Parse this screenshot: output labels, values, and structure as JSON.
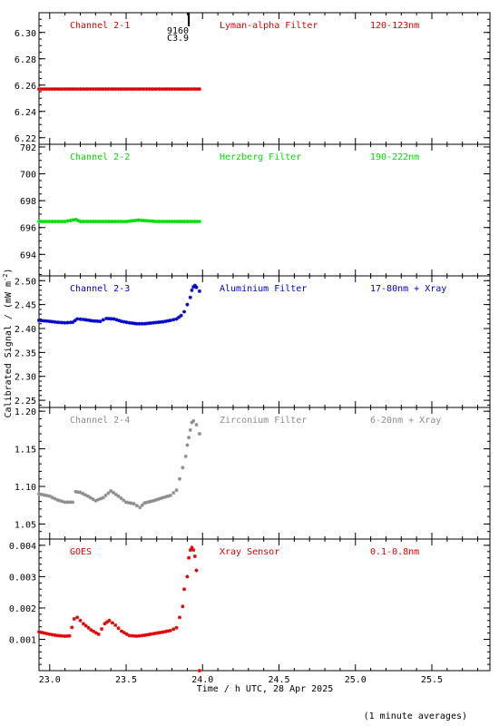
{
  "chart_data": {
    "type": "scatter",
    "y_axis_label": "Calibrated Signal / (mW m",
    "y_axis_label_exponent": "-2",
    "y_axis_label_close": ")",
    "x_axis_label": "Time / h UTC, 28 Apr 2025",
    "footnote": "(1 minute averages)",
    "xlim": [
      22.93,
      25.88
    ],
    "x_ticks": [
      23.0,
      23.5,
      24.0,
      24.5,
      25.0,
      25.5
    ],
    "x_tick_labels": [
      "23.0",
      "23.5",
      "24.0",
      "24.5",
      "25.0",
      "25.5"
    ],
    "flare_marker": {
      "x": 23.91,
      "label_line1": "9160",
      "label_line2": "C3.9"
    },
    "panels": [
      {
        "name": "Channel 2-1",
        "filter": "Lyman-alpha Filter",
        "band": "120-123nm",
        "color": "#e00000",
        "ylim": [
          6.215,
          6.315
        ],
        "y_ticks": [
          6.22,
          6.24,
          6.26,
          6.28,
          6.3
        ],
        "y_tick_labels": [
          "6.22",
          "6.24",
          "6.26",
          "6.28",
          "6.30"
        ],
        "minor_step": 0.005,
        "points": [
          [
            22.93,
            6.257
          ],
          [
            23.0,
            6.257
          ],
          [
            23.1,
            6.257
          ],
          [
            23.2,
            6.257
          ],
          [
            23.3,
            6.257
          ],
          [
            23.4,
            6.257
          ],
          [
            23.5,
            6.257
          ],
          [
            23.6,
            6.257
          ],
          [
            23.7,
            6.257
          ],
          [
            23.8,
            6.257
          ],
          [
            23.9,
            6.257
          ],
          [
            23.98,
            6.257
          ]
        ]
      },
      {
        "name": "Channel 2-2",
        "filter": "Herzberg Filter",
        "band": "190-222nm",
        "color": "#00dd00",
        "ylim": [
          692.4,
          702.2
        ],
        "y_ticks": [
          694,
          696,
          698,
          700,
          702
        ],
        "y_tick_labels": [
          "694",
          "696",
          "698",
          "700",
          "702"
        ],
        "minor_step": 0.5,
        "points": [
          [
            22.93,
            696.45
          ],
          [
            23.0,
            696.45
          ],
          [
            23.1,
            696.45
          ],
          [
            23.17,
            696.6
          ],
          [
            23.2,
            696.45
          ],
          [
            23.3,
            696.45
          ],
          [
            23.4,
            696.45
          ],
          [
            23.5,
            696.45
          ],
          [
            23.58,
            696.55
          ],
          [
            23.7,
            696.45
          ],
          [
            23.8,
            696.45
          ],
          [
            23.9,
            696.45
          ],
          [
            23.98,
            696.45
          ]
        ]
      },
      {
        "name": "Channel 2-3",
        "filter": "Aluminium Filter",
        "band": "17-80nm + Xray",
        "color": "#0000cc",
        "ylim": [
          2.235,
          2.51
        ],
        "y_ticks": [
          2.25,
          2.3,
          2.35,
          2.4,
          2.45,
          2.5
        ],
        "y_tick_labels": [
          "2.25",
          "2.30",
          "2.35",
          "2.40",
          "2.45",
          "2.50"
        ],
        "minor_step": 0.01,
        "points": [
          [
            22.93,
            2.417
          ],
          [
            23.0,
            2.415
          ],
          [
            23.05,
            2.413
          ],
          [
            23.1,
            2.412
          ],
          [
            23.15,
            2.413
          ],
          [
            23.18,
            2.42
          ],
          [
            23.22,
            2.419
          ],
          [
            23.28,
            2.416
          ],
          [
            23.33,
            2.415
          ],
          [
            23.37,
            2.421
          ],
          [
            23.42,
            2.42
          ],
          [
            23.47,
            2.415
          ],
          [
            23.52,
            2.412
          ],
          [
            23.57,
            2.41
          ],
          [
            23.62,
            2.41
          ],
          [
            23.68,
            2.412
          ],
          [
            23.74,
            2.414
          ],
          [
            23.79,
            2.417
          ],
          [
            23.83,
            2.42
          ],
          [
            23.86,
            2.427
          ],
          [
            23.88,
            2.435
          ],
          [
            23.9,
            2.45
          ],
          [
            23.92,
            2.465
          ],
          [
            23.93,
            2.48
          ],
          [
            23.94,
            2.487
          ],
          [
            23.95,
            2.49
          ],
          [
            23.96,
            2.486
          ],
          [
            23.98,
            2.478
          ]
        ]
      },
      {
        "name": "Channel 2-4",
        "filter": "Zirconium Filter",
        "band": "6-20nm + Xray",
        "color": "#8c8c8c",
        "ylim": [
          1.03,
          1.205
        ],
        "y_ticks": [
          1.05,
          1.1,
          1.15,
          1.2
        ],
        "y_tick_labels": [
          "1.05",
          "1.10",
          "1.15",
          "1.20"
        ],
        "minor_step": 0.01,
        "points": [
          [
            22.93,
            1.09
          ],
          [
            23.0,
            1.087
          ],
          [
            23.05,
            1.082
          ],
          [
            23.1,
            1.079
          ],
          [
            23.15,
            1.079
          ],
          [
            23.17,
            1.093
          ],
          [
            23.2,
            1.092
          ],
          [
            23.25,
            1.087
          ],
          [
            23.3,
            1.081
          ],
          [
            23.35,
            1.085
          ],
          [
            23.4,
            1.094
          ],
          [
            23.45,
            1.087
          ],
          [
            23.5,
            1.079
          ],
          [
            23.55,
            1.077
          ],
          [
            23.59,
            1.072
          ],
          [
            23.62,
            1.078
          ],
          [
            23.68,
            1.081
          ],
          [
            23.74,
            1.085
          ],
          [
            23.79,
            1.088
          ],
          [
            23.83,
            1.095
          ],
          [
            23.85,
            1.11
          ],
          [
            23.87,
            1.125
          ],
          [
            23.89,
            1.14
          ],
          [
            23.9,
            1.155
          ],
          [
            23.91,
            1.165
          ],
          [
            23.92,
            1.175
          ],
          [
            23.93,
            1.185
          ],
          [
            23.94,
            1.187
          ],
          [
            23.96,
            1.182
          ],
          [
            23.98,
            1.17
          ]
        ]
      },
      {
        "name": "GOES",
        "filter": "Xray Sensor",
        "band": "0.1-0.8nm",
        "color": "#e00000",
        "ylim": [
          0.0,
          0.0042
        ],
        "y_ticks": [
          0.001,
          0.002,
          0.003,
          0.004
        ],
        "y_tick_labels": [
          "0.001",
          "0.002",
          "0.003",
          "0.004"
        ],
        "minor_step": 0.0002,
        "points": [
          [
            22.93,
            0.00124
          ],
          [
            23.0,
            0.00116
          ],
          [
            23.05,
            0.00112
          ],
          [
            23.1,
            0.0011
          ],
          [
            23.13,
            0.00111
          ],
          [
            23.16,
            0.00165
          ],
          [
            23.18,
            0.0017
          ],
          [
            23.22,
            0.0015
          ],
          [
            23.27,
            0.0013
          ],
          [
            23.32,
            0.00116
          ],
          [
            23.36,
            0.0015
          ],
          [
            23.39,
            0.0016
          ],
          [
            23.43,
            0.00145
          ],
          [
            23.47,
            0.00126
          ],
          [
            23.52,
            0.00112
          ],
          [
            23.57,
            0.0011
          ],
          [
            23.62,
            0.00113
          ],
          [
            23.68,
            0.00118
          ],
          [
            23.74,
            0.00123
          ],
          [
            23.79,
            0.00128
          ],
          [
            23.83,
            0.00137
          ],
          [
            23.85,
            0.0017
          ],
          [
            23.87,
            0.00205
          ],
          [
            23.88,
            0.0026
          ],
          [
            23.9,
            0.003
          ],
          [
            23.91,
            0.0036
          ],
          [
            23.92,
            0.00385
          ],
          [
            23.93,
            0.00393
          ],
          [
            23.94,
            0.00385
          ],
          [
            23.95,
            0.00365
          ],
          [
            23.96,
            0.0032
          ],
          [
            23.97,
            0.0029
          ],
          [
            23.98,
            0.0
          ]
        ]
      }
    ]
  }
}
